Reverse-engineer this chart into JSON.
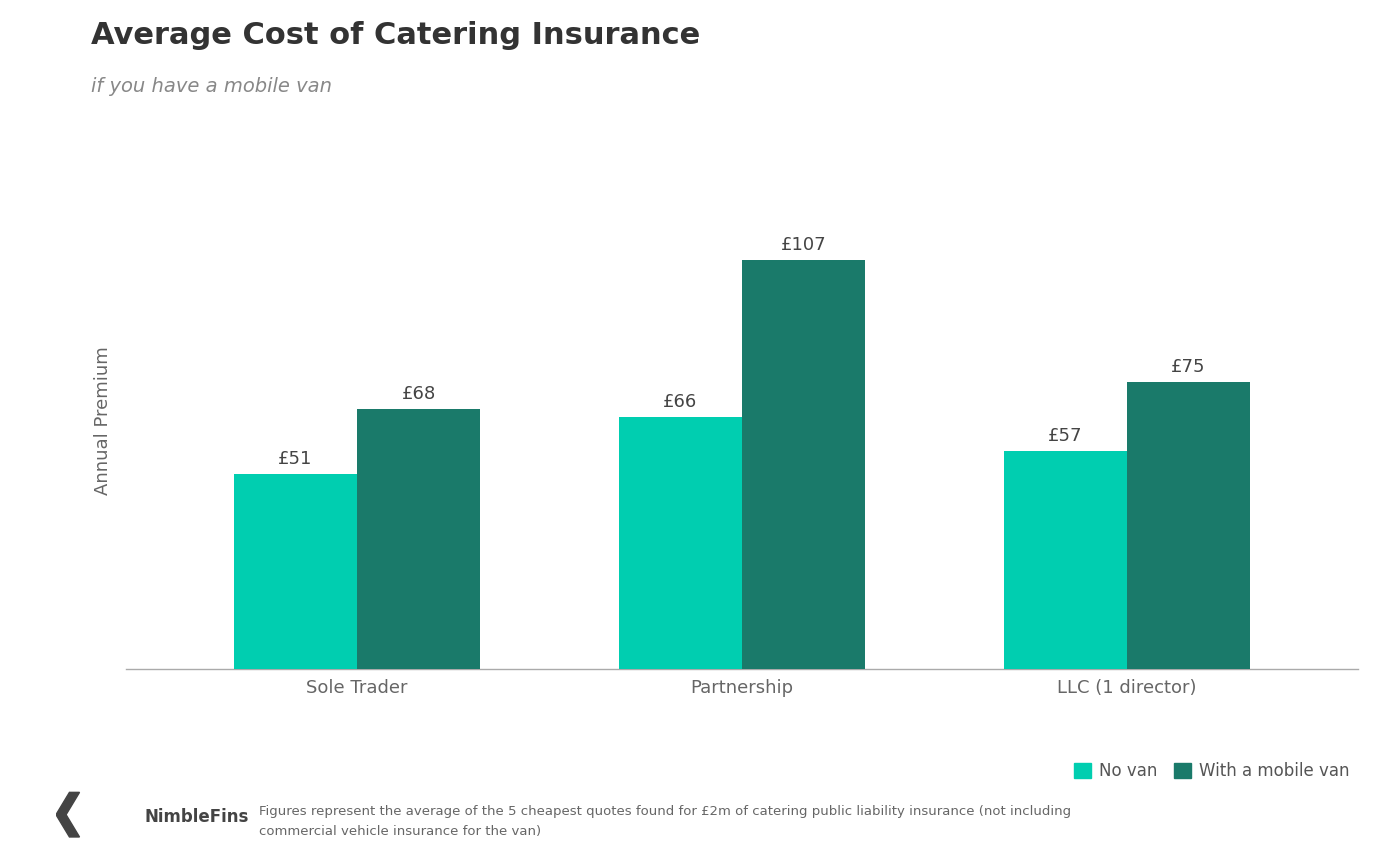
{
  "title": "Average Cost of Catering Insurance",
  "subtitle": "if you have a mobile van",
  "ylabel": "Annual Premium",
  "categories": [
    "Sole Trader",
    "Partnership",
    "LLC (1 director)"
  ],
  "no_van_values": [
    51,
    66,
    57
  ],
  "with_van_values": [
    68,
    107,
    75
  ],
  "no_van_color": "#00CEB0",
  "with_van_color": "#1A7A6A",
  "bar_width": 0.32,
  "ylim": [
    0,
    130
  ],
  "title_fontsize": 22,
  "subtitle_fontsize": 14,
  "ylabel_fontsize": 13,
  "xtick_fontsize": 13,
  "annotation_fontsize": 13,
  "legend_fontsize": 12,
  "background_color": "#FFFFFF",
  "footnote_line1": "Figures represent the average of the 5 cheapest quotes found for £2m of catering public liability insurance (not including",
  "footnote_line2": "commercial vehicle insurance for the van)",
  "legend_labels": [
    "No van",
    "With a mobile van"
  ]
}
